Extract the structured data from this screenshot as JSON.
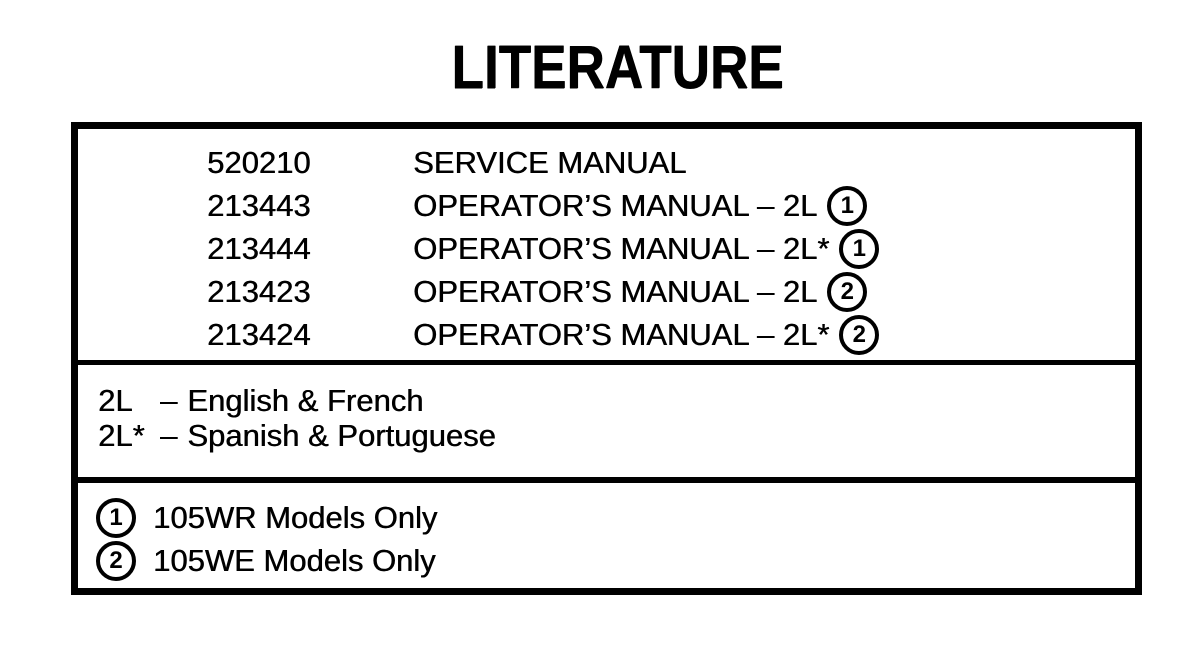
{
  "page": {
    "title": "LITERATURE"
  },
  "colors": {
    "ink": "#000000",
    "paper": "#ffffff"
  },
  "parts_table": {
    "rows": [
      {
        "part_number": "520210",
        "description": "SERVICE MANUAL",
        "note": ""
      },
      {
        "part_number": "213443",
        "description": "OPERATOR’S MANUAL – 2L",
        "note": "1"
      },
      {
        "part_number": "213444",
        "description": "OPERATOR’S MANUAL – 2L*",
        "note": "1"
      },
      {
        "part_number": "213423",
        "description": "OPERATOR’S MANUAL – 2L",
        "note": "2"
      },
      {
        "part_number": "213424",
        "description": "OPERATOR’S MANUAL – 2L*",
        "note": "2"
      }
    ]
  },
  "language_legend": {
    "rows": [
      {
        "code": "2L",
        "separator": "–",
        "text": "English & French"
      },
      {
        "code": "2L*",
        "separator": "–",
        "text": "Spanish & Portuguese"
      }
    ]
  },
  "model_notes": {
    "rows": [
      {
        "note": "1",
        "text": "105WR Models Only"
      },
      {
        "note": "2",
        "text": "105WE Models Only"
      }
    ]
  }
}
